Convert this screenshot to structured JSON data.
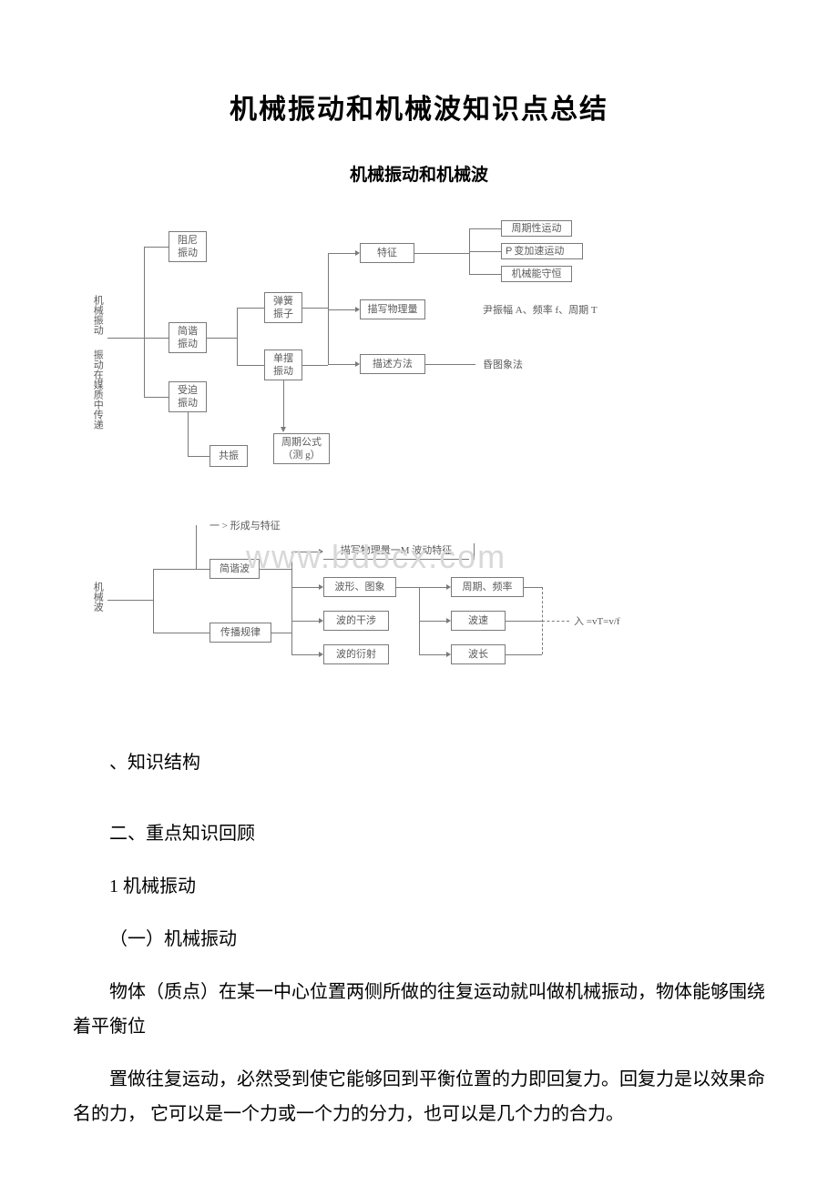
{
  "title": "机械振动和机械波知识点总结",
  "subtitle": "机械振动和机械波",
  "diagram1": {
    "side_label_1": "机械振动",
    "side_label_2": "振动在媒质中传递",
    "n_zuni": "阻尼\n振动",
    "n_jianxie": "简谐\n振动",
    "n_shoupo": "受迫\n振动",
    "n_gongzhen": "共振",
    "n_tanhuang": "弹簧\n振子",
    "n_danbai": "单摆\n振动",
    "n_zhouqi": "周期公式\n（测 g）",
    "n_tezheng": "特征",
    "n_miaoxie": "描写物理量",
    "n_miaoshu": "描述方法",
    "r1": "周期性运动",
    "r2_pre": "P",
    "r2": "变加速运动",
    "r3": "机械能守恒",
    "r4": "尹振幅 A、频率 f、周期 T",
    "r5": "昏图象法"
  },
  "diagram2": {
    "side_label": "机械波",
    "top_label": "一 > 形成与特征",
    "n_jianpu": "简谐波",
    "n_chuanbo": "传播规律",
    "n_miaoxie2": "描写物理量一M 波动特征",
    "n_boxing": "波形、图象",
    "n_ganshe": "波的干涉",
    "n_yanshe": "波的衍射",
    "n_zhouqi2": "周期、频率",
    "n_bosu": "波速",
    "n_bochang": "波长",
    "formula": "入 =vT=v/f"
  },
  "body": {
    "p1": "、知识结构",
    "p2": "二、重点知识回顾",
    "p3": "1 机械振动",
    "p4": "（一）机械振动",
    "p5": "物体（质点）在某一中心位置两侧所做的往复运动就叫做机械振动，物体能够围绕着平衡位",
    "p6": "置做往复运动，必然受到使它能够回到平衡位置的力即回复力。回复力是以效果命名的力， 它可以是一个力或一个力的分力，也可以是几个力的合力。"
  },
  "colors": {
    "text": "#000000",
    "diagram_text": "#5a5a5a",
    "border": "#7a7a7a",
    "watermark": "#d8d8d8",
    "background": "#ffffff"
  },
  "typography": {
    "title_fontsize": 30,
    "subtitle_fontsize": 19,
    "body_fontsize": 20,
    "diagram_fontsize": 11,
    "watermark_fontsize": 36
  },
  "watermark": "www.bdocx.com"
}
